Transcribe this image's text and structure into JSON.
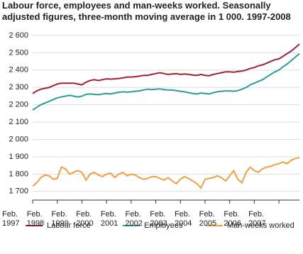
{
  "chart_data": {
    "type": "line",
    "title": "Labour force, employees and man-weeks worked. Seasonally adjusted figures, three-month moving average in 1 000. 1997-2008",
    "categories": [
      "Feb. 1997",
      null,
      null,
      null,
      null,
      null,
      "Feb. 1998",
      null,
      null,
      null,
      null,
      null,
      "Feb. 1999",
      null,
      null,
      null,
      null,
      null,
      "Feb. 2000",
      null,
      null,
      null,
      null,
      null,
      "Feb. 2001",
      null,
      null,
      null,
      null,
      null,
      "Feb. 2002",
      null,
      null,
      null,
      null,
      null,
      "Feb. 2003",
      null,
      null,
      null,
      null,
      null,
      "Feb. 2004",
      null,
      null,
      null,
      null,
      null,
      "Feb. 2005",
      null,
      null,
      null,
      null,
      null,
      "Feb. 2006",
      null,
      null,
      null,
      null,
      null,
      "Feb. 2007",
      null,
      null,
      null,
      null,
      null
    ],
    "series": [
      {
        "name": "Labour force",
        "color": "#9b2335",
        "values": [
          2265,
          2280,
          2290,
          2295,
          2300,
          2310,
          2320,
          2325,
          2325,
          2325,
          2325,
          2320,
          2315,
          2330,
          2340,
          2345,
          2340,
          2345,
          2350,
          2348,
          2350,
          2352,
          2355,
          2360,
          2360,
          2362,
          2365,
          2370,
          2370,
          2375,
          2380,
          2385,
          2380,
          2375,
          2378,
          2380,
          2375,
          2378,
          2375,
          2372,
          2370,
          2375,
          2370,
          2368,
          2375,
          2380,
          2385,
          2390,
          2390,
          2388,
          2392,
          2395,
          2400,
          2410,
          2415,
          2425,
          2430,
          2440,
          2450,
          2460,
          2465,
          2480,
          2495,
          2510,
          2530,
          2550
        ]
      },
      {
        "name": "Employees",
        "color": "#2a9d9a",
        "values": [
          2170,
          2185,
          2200,
          2210,
          2220,
          2230,
          2240,
          2245,
          2250,
          2255,
          2250,
          2245,
          2250,
          2260,
          2262,
          2260,
          2258,
          2262,
          2265,
          2262,
          2268,
          2272,
          2275,
          2273,
          2275,
          2278,
          2280,
          2285,
          2290,
          2288,
          2290,
          2292,
          2288,
          2285,
          2285,
          2282,
          2278,
          2275,
          2270,
          2265,
          2262,
          2268,
          2265,
          2262,
          2270,
          2275,
          2278,
          2280,
          2280,
          2278,
          2282,
          2290,
          2300,
          2315,
          2325,
          2335,
          2345,
          2360,
          2375,
          2390,
          2400,
          2420,
          2435,
          2455,
          2475,
          2495
        ]
      },
      {
        "name": "Man-weeks worked",
        "color": "#f0a040",
        "values": [
          1730,
          1750,
          1780,
          1795,
          1790,
          1770,
          1775,
          1840,
          1830,
          1800,
          1810,
          1820,
          1810,
          1765,
          1800,
          1810,
          1795,
          1785,
          1800,
          1805,
          1780,
          1800,
          1810,
          1790,
          1800,
          1795,
          1780,
          1770,
          1775,
          1785,
          1785,
          1775,
          1765,
          1780,
          1760,
          1745,
          1770,
          1785,
          1775,
          1760,
          1745,
          1720,
          1770,
          1775,
          1780,
          1790,
          1780,
          1760,
          1790,
          1820,
          1770,
          1750,
          1810,
          1840,
          1820,
          1810,
          1830,
          1840,
          1845,
          1855,
          1860,
          1870,
          1860,
          1880,
          1890,
          1895
        ]
      }
    ],
    "ylim": [
      1650,
      2600
    ],
    "yticks": [
      {
        "value": 1700,
        "label": "1 700"
      },
      {
        "value": 1800,
        "label": "1 800"
      },
      {
        "value": 1900,
        "label": "1 900"
      },
      {
        "value": 2000,
        "label": "2 000"
      },
      {
        "value": 2100,
        "label": "2 100"
      },
      {
        "value": 2200,
        "label": "2 200"
      },
      {
        "value": 2300,
        "label": "2 300"
      },
      {
        "value": 2400,
        "label": "2 400"
      },
      {
        "value": 2500,
        "label": "2 500"
      },
      {
        "value": 2600,
        "label": "2 600"
      }
    ],
    "grid": true
  }
}
